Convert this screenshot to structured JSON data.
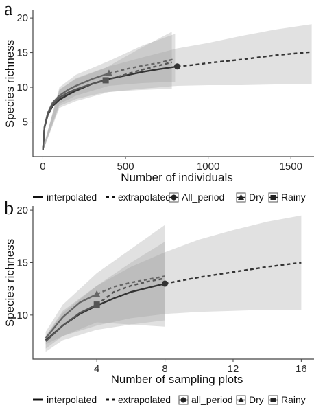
{
  "chart_data": [
    {
      "type": "line",
      "panel_label": "a",
      "xlabel": "Number of individuals",
      "ylabel": "Species richness",
      "xticks": [
        0,
        500,
        1000,
        1500
      ],
      "yticks": [
        5,
        10,
        15,
        20
      ],
      "xlim": [
        -60,
        1640
      ],
      "ylim": [
        0,
        21.2
      ],
      "grid": false,
      "legend_position": "bottom",
      "legend": {
        "line_types": [
          "interpolated",
          "extrapolated"
        ],
        "series_names": [
          "All_period",
          "Dry",
          "Rainy"
        ]
      },
      "series": [
        {
          "name": "All_period",
          "marker": "circle",
          "color": "#333333",
          "interpolated": [
            [
              1,
              1
            ],
            [
              10,
              4.2
            ],
            [
              30,
              6.0
            ],
            [
              60,
              7.3
            ],
            [
              100,
              8.2
            ],
            [
              150,
              8.9
            ],
            [
              200,
              9.5
            ],
            [
              300,
              10.5
            ],
            [
              400,
              11.2
            ],
            [
              500,
              11.7
            ],
            [
              600,
              12.2
            ],
            [
              700,
              12.6
            ],
            [
              813,
              13.0
            ]
          ],
          "extrapolated": [
            [
              813,
              13.0
            ],
            [
              900,
              13.2
            ],
            [
              1000,
              13.5
            ],
            [
              1200,
              14.0
            ],
            [
              1400,
              14.6
            ],
            [
              1626,
              15.1
            ]
          ],
          "observed": [
            813,
            13.0
          ],
          "ci_upper": [
            [
              1,
              1.2
            ],
            [
              100,
              9.6
            ],
            [
              200,
              11.3
            ],
            [
              400,
              13.0
            ],
            [
              600,
              14.3
            ],
            [
              813,
              15.6
            ],
            [
              1000,
              16.4
            ],
            [
              1200,
              17.4
            ],
            [
              1400,
              18.3
            ],
            [
              1626,
              19.1
            ]
          ],
          "ci_lower": [
            [
              1,
              0.8
            ],
            [
              100,
              7.0
            ],
            [
              200,
              8.0
            ],
            [
              400,
              9.3
            ],
            [
              600,
              9.8
            ],
            [
              813,
              10.2
            ],
            [
              1000,
              10.3
            ],
            [
              1200,
              10.3
            ],
            [
              1400,
              10.4
            ],
            [
              1626,
              10.4
            ]
          ]
        },
        {
          "name": "Dry",
          "marker": "triangle",
          "color": "#666666",
          "interpolated": [
            [
              1,
              1
            ],
            [
              10,
              4.3
            ],
            [
              30,
              6.3
            ],
            [
              60,
              7.8
            ],
            [
              100,
              8.8
            ],
            [
              150,
              9.6
            ],
            [
              200,
              10.2
            ],
            [
              300,
              11.2
            ],
            [
              400,
              12.0
            ]
          ],
          "extrapolated": [
            [
              400,
              12.0
            ],
            [
              500,
              12.6
            ],
            [
              600,
              13.1
            ],
            [
              700,
              13.5
            ],
            [
              800,
              14.1
            ]
          ],
          "observed": [
            400,
            12.0
          ],
          "ci_upper": [
            [
              1,
              1.2
            ],
            [
              100,
              10.0
            ],
            [
              200,
              11.8
            ],
            [
              400,
              13.8
            ],
            [
              600,
              16.0
            ],
            [
              800,
              17.7
            ]
          ],
          "ci_lower": [
            [
              1,
              0.8
            ],
            [
              100,
              7.6
            ],
            [
              200,
              8.8
            ],
            [
              400,
              10.2
            ],
            [
              600,
              10.6
            ],
            [
              800,
              10.8
            ]
          ]
        },
        {
          "name": "Rainy",
          "marker": "square",
          "color": "#555555",
          "interpolated": [
            [
              1,
              1
            ],
            [
              10,
              4.2
            ],
            [
              30,
              6.1
            ],
            [
              60,
              7.5
            ],
            [
              100,
              8.5
            ],
            [
              150,
              9.2
            ],
            [
              200,
              9.7
            ],
            [
              300,
              10.5
            ],
            [
              380,
              11.0
            ]
          ],
          "extrapolated": [
            [
              380,
              11.0
            ],
            [
              480,
              11.7
            ],
            [
              580,
              12.4
            ],
            [
              680,
              13.0
            ],
            [
              780,
              13.6
            ]
          ],
          "observed": [
            380,
            11.0
          ],
          "ci_upper": [
            [
              1,
              1.2
            ],
            [
              100,
              9.7
            ],
            [
              200,
              11.2
            ],
            [
              380,
              12.8
            ],
            [
              580,
              15.5
            ],
            [
              780,
              18.0
            ]
          ],
          "ci_lower": [
            [
              1,
              0.8
            ],
            [
              100,
              7.3
            ],
            [
              200,
              8.3
            ],
            [
              380,
              9.3
            ],
            [
              580,
              9.6
            ],
            [
              780,
              9.8
            ]
          ]
        }
      ]
    },
    {
      "type": "line",
      "panel_label": "b",
      "xlabel": "Number of sampling plots",
      "ylabel": "Species richness",
      "xticks": [
        4,
        8,
        12,
        16
      ],
      "yticks": [
        10,
        15,
        20
      ],
      "xlim": [
        0.25,
        16.75
      ],
      "ylim": [
        5.8,
        20.4
      ],
      "grid": false,
      "legend_position": "bottom",
      "legend": {
        "line_types": [
          "interpolated",
          "extrapolated"
        ],
        "series_names": [
          "all_period",
          "Dry",
          "Rainy"
        ]
      },
      "series": [
        {
          "name": "all_period",
          "marker": "circle",
          "color": "#333333",
          "interpolated": [
            [
              1,
              7.6
            ],
            [
              2,
              9.0
            ],
            [
              3,
              10.1
            ],
            [
              4,
              10.9
            ],
            [
              5,
              11.6
            ],
            [
              6,
              12.2
            ],
            [
              7,
              12.6
            ],
            [
              8,
              13.0
            ]
          ],
          "extrapolated": [
            [
              8,
              13.0
            ],
            [
              9,
              13.3
            ],
            [
              10,
              13.6
            ],
            [
              12,
              14.1
            ],
            [
              14,
              14.6
            ],
            [
              16,
              15.0
            ]
          ],
          "observed": [
            8,
            13.0
          ],
          "ci_upper": [
            [
              1,
              8.0
            ],
            [
              2,
              10.4
            ],
            [
              4,
              12.8
            ],
            [
              6,
              14.6
            ],
            [
              8,
              16.0
            ],
            [
              10,
              17.2
            ],
            [
              12,
              18.1
            ],
            [
              14,
              18.9
            ],
            [
              16,
              19.5
            ]
          ],
          "ci_lower": [
            [
              1,
              7.2
            ],
            [
              2,
              8.0
            ],
            [
              4,
              9.0
            ],
            [
              6,
              9.7
            ],
            [
              8,
              10.1
            ],
            [
              10,
              10.3
            ],
            [
              12,
              10.4
            ],
            [
              14,
              10.5
            ],
            [
              16,
              10.5
            ]
          ]
        },
        {
          "name": "Dry",
          "marker": "triangle",
          "color": "#666666",
          "interpolated": [
            [
              1,
              7.8
            ],
            [
              2,
              9.8
            ],
            [
              3,
              11.2
            ],
            [
              4,
              12.0
            ]
          ],
          "extrapolated": [
            [
              4,
              12.0
            ],
            [
              5,
              12.7
            ],
            [
              6,
              13.1
            ],
            [
              7,
              13.4
            ],
            [
              8,
              13.7
            ]
          ],
          "observed": [
            4,
            12.0
          ],
          "ci_upper": [
            [
              1,
              8.4
            ],
            [
              2,
              11.0
            ],
            [
              4,
              14.0
            ],
            [
              6,
              16.3
            ],
            [
              8,
              18.6
            ]
          ],
          "ci_lower": [
            [
              1,
              6.8
            ],
            [
              2,
              8.0
            ],
            [
              4,
              9.3
            ],
            [
              6,
              9.1
            ],
            [
              8,
              8.9
            ]
          ]
        },
        {
          "name": "Rainy",
          "marker": "square",
          "color": "#555555",
          "interpolated": [
            [
              1,
              7.5
            ],
            [
              2,
              9.0
            ],
            [
              3,
              10.2
            ],
            [
              4,
              11.0
            ]
          ],
          "extrapolated": [
            [
              4,
              11.0
            ],
            [
              5,
              12.2
            ],
            [
              6,
              12.8
            ],
            [
              7,
              13.2
            ],
            [
              8,
              13.5
            ]
          ],
          "observed": [
            4,
            11.0
          ],
          "ci_upper": [
            [
              1,
              8.0
            ],
            [
              2,
              10.2
            ],
            [
              4,
              12.8
            ],
            [
              6,
              15.0
            ],
            [
              8,
              17.0
            ]
          ],
          "ci_lower": [
            [
              1,
              6.5
            ],
            [
              2,
              7.6
            ],
            [
              4,
              8.6
            ],
            [
              6,
              9.1
            ],
            [
              8,
              9.5
            ]
          ]
        }
      ]
    }
  ],
  "colors": {
    "ci_band": "#9a9a9a",
    "axis": "#444444"
  }
}
